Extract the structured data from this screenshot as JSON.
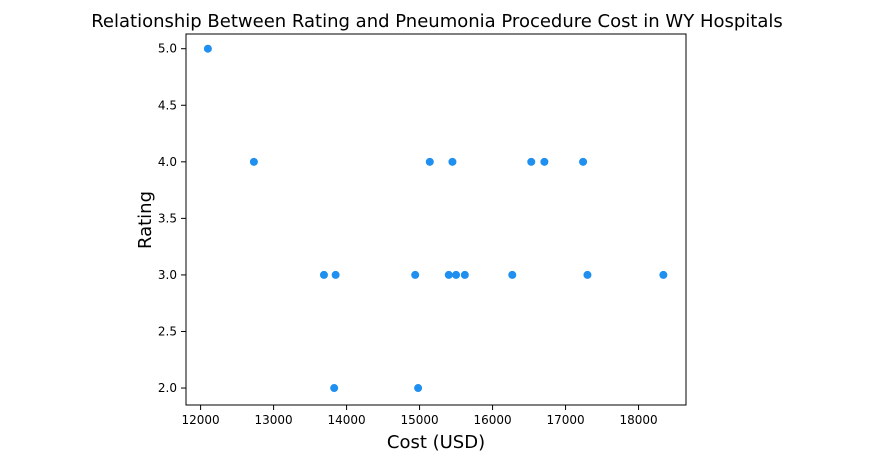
{
  "chart_data": {
    "type": "scatter",
    "title": "Relationship Between Rating and Pneumonia Procedure Cost in WY Hospitals",
    "xlabel": "Cost (USD)",
    "ylabel": "Rating",
    "xlim": [
      11800,
      18650
    ],
    "ylim": [
      1.85,
      5.13
    ],
    "xticks": [
      12000,
      13000,
      14000,
      15000,
      16000,
      17000,
      18000
    ],
    "yticks": [
      2.0,
      2.5,
      3.0,
      3.5,
      4.0,
      4.5,
      5.0
    ],
    "xtick_labels": [
      "12000",
      "13000",
      "14000",
      "15000",
      "16000",
      "17000",
      "18000"
    ],
    "ytick_labels": [
      "2.0",
      "2.5",
      "3.0",
      "3.5",
      "4.0",
      "4.5",
      "5.0"
    ],
    "grid": false,
    "marker_color": "#1f8ff0",
    "points": [
      {
        "x": 12100,
        "y": 5.0
      },
      {
        "x": 12730,
        "y": 4.0
      },
      {
        "x": 13690,
        "y": 3.0
      },
      {
        "x": 13850,
        "y": 3.0
      },
      {
        "x": 13830,
        "y": 2.0
      },
      {
        "x": 14940,
        "y": 3.0
      },
      {
        "x": 14980,
        "y": 2.0
      },
      {
        "x": 15140,
        "y": 4.0
      },
      {
        "x": 15400,
        "y": 3.0
      },
      {
        "x": 15450,
        "y": 4.0
      },
      {
        "x": 15500,
        "y": 3.0
      },
      {
        "x": 15620,
        "y": 3.0
      },
      {
        "x": 16270,
        "y": 3.0
      },
      {
        "x": 16530,
        "y": 4.0
      },
      {
        "x": 16710,
        "y": 4.0
      },
      {
        "x": 17240,
        "y": 4.0
      },
      {
        "x": 17300,
        "y": 3.0
      },
      {
        "x": 18340,
        "y": 3.0
      }
    ]
  }
}
